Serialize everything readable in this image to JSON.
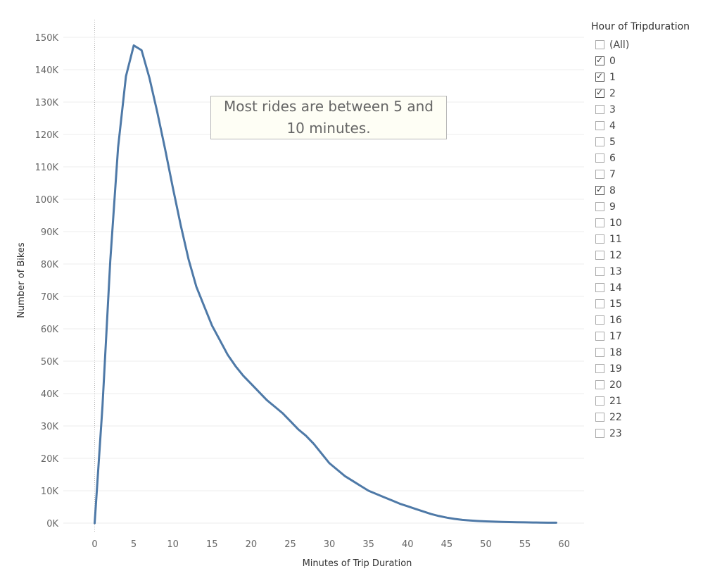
{
  "chart_data": {
    "type": "line",
    "title": "",
    "xlabel": "Minutes of Trip Duration",
    "ylabel": "Number of Bikes",
    "xlim": [
      -4,
      63
    ],
    "ylim": [
      0,
      150000
    ],
    "x_ticks": [
      0,
      5,
      10,
      15,
      20,
      25,
      30,
      35,
      40,
      45,
      50,
      55,
      60
    ],
    "x_tick_labels": [
      "0",
      "5",
      "10",
      "15",
      "20",
      "25",
      "30",
      "35",
      "40",
      "45",
      "50",
      "55",
      "60"
    ],
    "y_ticks": [
      0,
      10000,
      20000,
      30000,
      40000,
      50000,
      60000,
      70000,
      80000,
      90000,
      100000,
      110000,
      120000,
      130000,
      140000,
      150000
    ],
    "y_tick_labels": [
      "0K",
      "10K",
      "20K",
      "30K",
      "40K",
      "50K",
      "60K",
      "70K",
      "80K",
      "90K",
      "100K",
      "110K",
      "120K",
      "130K",
      "140K",
      "150K"
    ],
    "grid": "horizontal",
    "line_color": "#4e79a7",
    "series": [
      {
        "x": [
          0,
          1,
          2,
          3,
          4,
          5,
          6,
          7,
          8,
          9,
          10,
          11,
          12,
          13,
          14,
          15,
          16,
          17,
          18,
          19,
          20,
          21,
          22,
          23,
          24,
          25,
          26,
          27,
          28,
          29,
          30,
          31,
          32,
          33,
          34,
          35,
          36,
          37,
          38,
          39,
          40,
          41,
          42,
          43,
          44,
          45,
          46,
          47,
          48,
          49,
          50,
          51,
          52,
          53,
          54,
          55,
          56,
          57,
          58,
          59
        ],
        "values": [
          0,
          36000,
          81000,
          116000,
          138000,
          147500,
          146000,
          137500,
          127000,
          115500,
          103500,
          92000,
          81500,
          73000,
          67000,
          61000,
          56500,
          52000,
          48500,
          45500,
          43000,
          40500,
          38000,
          36000,
          34000,
          31500,
          29000,
          27000,
          24500,
          21500,
          18500,
          16500,
          14500,
          13000,
          11500,
          10000,
          9000,
          8000,
          7000,
          6000,
          5200,
          4400,
          3600,
          2800,
          2200,
          1700,
          1300,
          1000,
          800,
          650,
          550,
          450,
          380,
          320,
          270,
          230,
          200,
          170,
          140,
          120
        ]
      }
    ],
    "annotation": "Most rides are between 5 and 10 minutes."
  },
  "filter": {
    "title": "Hour of Tripduration",
    "items": [
      {
        "label": "(All)",
        "checked": false
      },
      {
        "label": "0",
        "checked": true
      },
      {
        "label": "1",
        "checked": true
      },
      {
        "label": "2",
        "checked": true
      },
      {
        "label": "3",
        "checked": false
      },
      {
        "label": "4",
        "checked": false
      },
      {
        "label": "5",
        "checked": false
      },
      {
        "label": "6",
        "checked": false
      },
      {
        "label": "7",
        "checked": false
      },
      {
        "label": "8",
        "checked": true
      },
      {
        "label": "9",
        "checked": false
      },
      {
        "label": "10",
        "checked": false
      },
      {
        "label": "11",
        "checked": false
      },
      {
        "label": "12",
        "checked": false
      },
      {
        "label": "13",
        "checked": false
      },
      {
        "label": "14",
        "checked": false
      },
      {
        "label": "15",
        "checked": false
      },
      {
        "label": "16",
        "checked": false
      },
      {
        "label": "17",
        "checked": false
      },
      {
        "label": "18",
        "checked": false
      },
      {
        "label": "19",
        "checked": false
      },
      {
        "label": "20",
        "checked": false
      },
      {
        "label": "21",
        "checked": false
      },
      {
        "label": "22",
        "checked": false
      },
      {
        "label": "23",
        "checked": false
      }
    ]
  }
}
